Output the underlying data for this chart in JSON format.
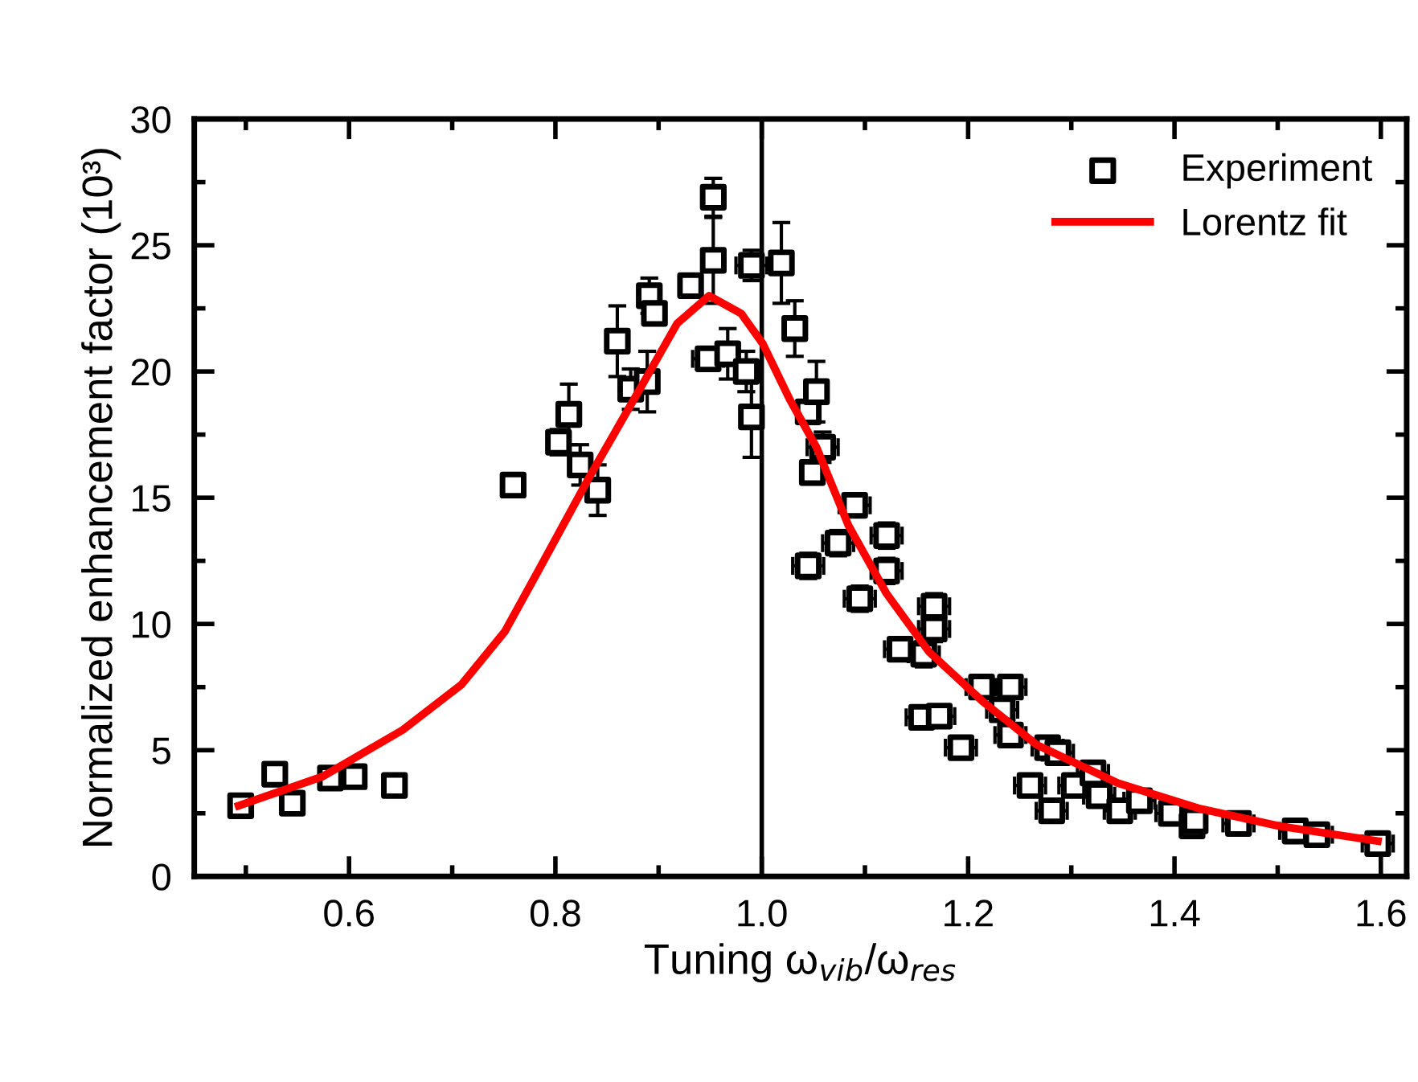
{
  "chart_data": {
    "type": "scatter",
    "xlabel": "Tuning ω$_{vib}$/ω$_{res}$",
    "ylabel": "Normalized enhancement factor (10³)",
    "xlim": [
      0.45,
      1.625
    ],
    "ylim": [
      0,
      30
    ],
    "xticks": [
      {
        "value": 0.5,
        "label": null
      },
      {
        "value": 0.6,
        "label": "0.6"
      },
      {
        "value": 0.7,
        "label": null
      },
      {
        "value": 0.8,
        "label": "0.8"
      },
      {
        "value": 0.9,
        "label": null
      },
      {
        "value": 1.0,
        "label": "1.0"
      },
      {
        "value": 1.1,
        "label": null
      },
      {
        "value": 1.2,
        "label": "1.2"
      },
      {
        "value": 1.3,
        "label": null
      },
      {
        "value": 1.4,
        "label": "1.4"
      },
      {
        "value": 1.5,
        "label": null
      },
      {
        "value": 1.6,
        "label": "1.6"
      }
    ],
    "yticks": [
      0,
      {
        "value": 2.5,
        "label": null
      },
      5,
      {
        "value": 7.5,
        "label": null
      },
      10,
      {
        "value": 12.5,
        "label": null
      },
      15,
      {
        "value": 17.5,
        "label": null
      },
      20,
      {
        "value": 22.5,
        "label": null
      },
      25,
      {
        "value": 27.5,
        "label": null
      },
      30
    ],
    "grid": false,
    "legend": "top right",
    "ref_lines": [
      {
        "axis": "x",
        "value": 1.0,
        "color": "#000000"
      }
    ],
    "series": [
      {
        "name": "Experiment",
        "marker": "square",
        "color": "#000000",
        "x": [
          0.495,
          0.528,
          0.545,
          0.582,
          0.605,
          0.644,
          0.759,
          0.803,
          0.813,
          0.824,
          0.841,
          0.86,
          0.873,
          0.889,
          0.891,
          0.896,
          0.931,
          0.948,
          0.953,
          0.953,
          0.967,
          0.985,
          0.99,
          0.99,
          1.019,
          1.032,
          1.045,
          1.049,
          1.053,
          1.059,
          1.045,
          1.074,
          1.09,
          1.095,
          1.121,
          1.121,
          1.134,
          1.155,
          1.157,
          1.167,
          1.167,
          1.172,
          1.193,
          1.213,
          1.233,
          1.241,
          1.241,
          1.26,
          1.277,
          1.281,
          1.287,
          1.303,
          1.321,
          1.327,
          1.347,
          1.366,
          1.397,
          1.417,
          1.42,
          1.462,
          1.517,
          1.538,
          1.597
        ],
        "values": [
          2.8,
          4.05,
          2.9,
          3.9,
          3.95,
          3.6,
          15.5,
          17.2,
          18.3,
          16.3,
          15.3,
          21.2,
          19.3,
          19.6,
          23.0,
          22.3,
          23.4,
          20.5,
          26.9,
          24.4,
          20.7,
          20.0,
          18.2,
          24.2,
          24.3,
          21.7,
          18.4,
          16.0,
          19.2,
          17.0,
          12.3,
          13.2,
          14.7,
          11.0,
          13.5,
          12.1,
          9.0,
          6.3,
          8.8,
          10.7,
          9.8,
          6.35,
          5.1,
          7.5,
          6.6,
          7.5,
          5.6,
          3.6,
          5.1,
          2.6,
          4.9,
          3.6,
          4.1,
          3.2,
          2.6,
          3.0,
          2.5,
          2.0,
          2.2,
          2.1,
          1.8,
          1.65,
          1.3
        ],
        "errors": [
          null,
          null,
          null,
          null,
          null,
          null,
          null,
          0.5,
          1.2,
          0.8,
          1.0,
          1.4,
          0.8,
          1.2,
          0.7,
          null,
          null,
          null,
          0.75,
          1.7,
          1.0,
          0.8,
          1.6,
          0.6,
          1.6,
          1.1,
          null,
          null,
          1.2,
          0.6,
          0.5,
          0.5,
          0.4,
          0.5,
          0.5,
          0.5,
          0.4,
          0.4,
          0.5,
          0.5,
          0.5,
          0.4,
          0.4,
          0.4,
          0.4,
          0.4,
          0.4,
          0.3,
          0.4,
          0.3,
          0.4,
          0.3,
          0.3,
          0.3,
          0.3,
          0.3,
          0.3,
          0.3,
          0.3,
          0.3,
          0.3,
          0.3,
          0.3
        ],
        "xerrors": [
          null,
          null,
          null,
          null,
          null,
          null,
          null,
          null,
          null,
          null,
          null,
          null,
          0.01,
          0.01,
          null,
          null,
          null,
          0.015,
          null,
          null,
          0.01,
          0.01,
          null,
          0.015,
          null,
          null,
          null,
          null,
          null,
          0.015,
          0.015,
          0.015,
          0.015,
          0.015,
          0.015,
          0.015,
          0.015,
          0.015,
          0.015,
          0.015,
          0.015,
          0.015,
          0.015,
          0.015,
          0.015,
          0.015,
          0.015,
          0.015,
          0.015,
          0.015,
          0.015,
          0.015,
          0.015,
          0.015,
          0.015,
          0.015,
          0.015,
          null,
          null,
          0.015,
          0.015,
          0.015,
          0.015
        ]
      },
      {
        "name": "Lorentz fit",
        "type": "line",
        "marker": "none",
        "line_style": "solid",
        "color": "#ff0000",
        "x": [
          0.493,
          0.574,
          0.652,
          0.709,
          0.751,
          0.782,
          0.834,
          0.886,
          0.918,
          0.949,
          0.98,
          1.001,
          1.027,
          1.053,
          1.084,
          1.121,
          1.162,
          1.215,
          1.267,
          1.345,
          1.423,
          1.501,
          1.597
        ],
        "values": [
          2.8,
          3.95,
          5.8,
          7.6,
          9.7,
          12.0,
          15.9,
          19.6,
          21.9,
          23.0,
          22.3,
          21.1,
          18.9,
          17.0,
          13.9,
          11.2,
          8.9,
          6.9,
          5.2,
          3.7,
          2.7,
          2.0,
          1.4
        ]
      }
    ]
  }
}
